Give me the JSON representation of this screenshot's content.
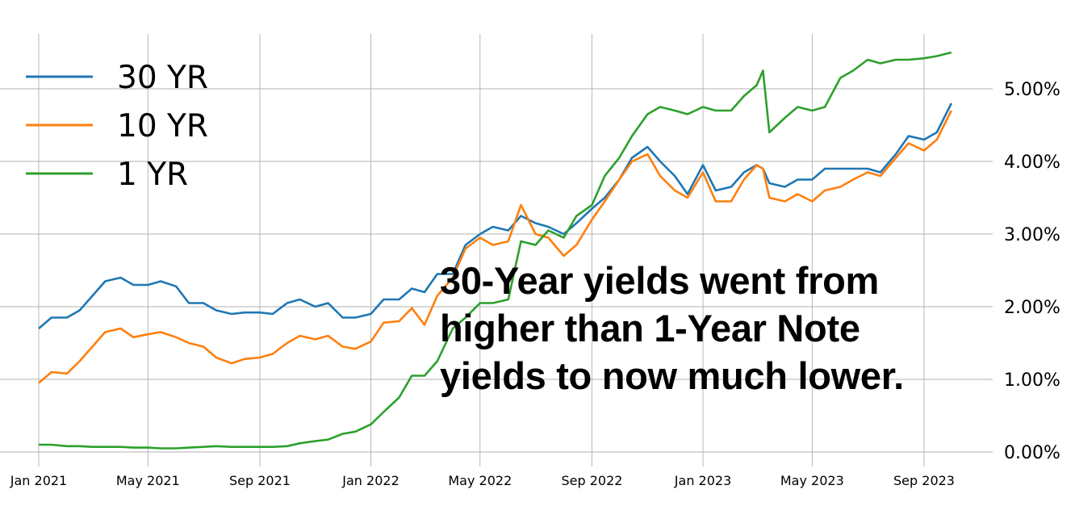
{
  "chart_data": {
    "type": "line",
    "title": "",
    "xlabel": "",
    "ylabel": "",
    "ylim": [
      -0.2,
      5.8
    ],
    "y_axis_side": "right",
    "y_ticks": [
      0,
      1,
      2,
      3,
      4,
      5
    ],
    "y_tick_labels": [
      "0.00%",
      "1.00%",
      "2.00%",
      "3.00%",
      "4.00%",
      "5.00%"
    ],
    "x_ticks": [
      "2021-01-01",
      "2021-05-01",
      "2021-09-01",
      "2022-01-01",
      "2022-05-01",
      "2022-09-01",
      "2023-01-01",
      "2023-05-01",
      "2023-09-01"
    ],
    "x_tick_labels": [
      "Jan 2021",
      "May 2021",
      "Sep 2021",
      "Jan 2022",
      "May 2022",
      "Sep 2022",
      "Jan 2023",
      "May 2023",
      "Sep 2023"
    ],
    "grid": true,
    "legend_position": "top-left",
    "annotation": [
      "30-Year yields went from",
      "higher than 1-Year Note",
      "yields to now much lower."
    ],
    "x": [
      "2021-01-01",
      "2021-01-15",
      "2021-02-01",
      "2021-02-15",
      "2021-03-01",
      "2021-03-15",
      "2021-04-01",
      "2021-04-15",
      "2021-05-01",
      "2021-05-15",
      "2021-06-01",
      "2021-06-15",
      "2021-07-01",
      "2021-07-15",
      "2021-08-01",
      "2021-08-15",
      "2021-09-01",
      "2021-09-15",
      "2021-10-01",
      "2021-10-15",
      "2021-11-01",
      "2021-11-15",
      "2021-12-01",
      "2021-12-15",
      "2022-01-01",
      "2022-01-15",
      "2022-02-01",
      "2022-02-15",
      "2022-03-01",
      "2022-03-15",
      "2022-04-01",
      "2022-04-15",
      "2022-05-01",
      "2022-05-15",
      "2022-06-01",
      "2022-06-15",
      "2022-07-01",
      "2022-07-15",
      "2022-08-01",
      "2022-08-15",
      "2022-09-01",
      "2022-09-15",
      "2022-10-01",
      "2022-10-15",
      "2022-11-01",
      "2022-11-15",
      "2022-12-01",
      "2022-12-15",
      "2023-01-01",
      "2023-01-15",
      "2023-02-01",
      "2023-02-15",
      "2023-03-01",
      "2023-03-08",
      "2023-03-15",
      "2023-04-01",
      "2023-04-15",
      "2023-05-01",
      "2023-05-15",
      "2023-06-01",
      "2023-06-15",
      "2023-07-01",
      "2023-07-15",
      "2023-08-01",
      "2023-08-15",
      "2023-09-01",
      "2023-09-15",
      "2023-10-01"
    ],
    "series": [
      {
        "name": "30 YR",
        "color": "#1f77b4",
        "values": [
          1.7,
          1.85,
          1.85,
          1.95,
          2.15,
          2.35,
          2.4,
          2.3,
          2.3,
          2.35,
          2.28,
          2.05,
          2.05,
          1.95,
          1.9,
          1.92,
          1.92,
          1.9,
          2.05,
          2.1,
          2.0,
          2.05,
          1.85,
          1.85,
          1.9,
          2.1,
          2.1,
          2.25,
          2.2,
          2.45,
          2.45,
          2.85,
          3.0,
          3.1,
          3.05,
          3.25,
          3.15,
          3.1,
          3.0,
          3.15,
          3.35,
          3.5,
          3.75,
          4.05,
          4.2,
          4.0,
          3.8,
          3.55,
          3.95,
          3.6,
          3.65,
          3.85,
          3.95,
          3.9,
          3.7,
          3.65,
          3.75,
          3.75,
          3.9,
          3.9,
          3.9,
          3.9,
          3.85,
          4.1,
          4.35,
          4.3,
          4.4,
          4.8
        ]
      },
      {
        "name": "10 YR",
        "color": "#ff7f0e",
        "values": [
          0.95,
          1.1,
          1.08,
          1.25,
          1.45,
          1.65,
          1.7,
          1.58,
          1.62,
          1.65,
          1.58,
          1.5,
          1.45,
          1.3,
          1.22,
          1.28,
          1.3,
          1.35,
          1.5,
          1.6,
          1.55,
          1.6,
          1.45,
          1.42,
          1.52,
          1.78,
          1.8,
          1.98,
          1.75,
          2.15,
          2.4,
          2.8,
          2.95,
          2.85,
          2.9,
          3.4,
          3.0,
          2.95,
          2.7,
          2.85,
          3.2,
          3.45,
          3.75,
          4.0,
          4.1,
          3.8,
          3.6,
          3.5,
          3.85,
          3.45,
          3.45,
          3.75,
          3.95,
          3.9,
          3.5,
          3.45,
          3.55,
          3.45,
          3.6,
          3.65,
          3.75,
          3.85,
          3.8,
          4.05,
          4.25,
          4.15,
          4.3,
          4.7
        ]
      },
      {
        "name": "1 YR",
        "color": "#2ca02c",
        "values": [
          0.1,
          0.1,
          0.08,
          0.08,
          0.07,
          0.07,
          0.07,
          0.06,
          0.06,
          0.05,
          0.05,
          0.06,
          0.07,
          0.08,
          0.07,
          0.07,
          0.07,
          0.07,
          0.08,
          0.12,
          0.15,
          0.17,
          0.25,
          0.28,
          0.38,
          0.55,
          0.75,
          1.05,
          1.05,
          1.25,
          1.7,
          1.85,
          2.05,
          2.05,
          2.1,
          2.9,
          2.85,
          3.05,
          2.95,
          3.25,
          3.4,
          3.8,
          4.05,
          4.35,
          4.65,
          4.75,
          4.7,
          4.65,
          4.75,
          4.7,
          4.7,
          4.9,
          5.05,
          5.25,
          4.4,
          4.6,
          4.75,
          4.7,
          4.75,
          5.15,
          5.25,
          5.4,
          5.35,
          5.4,
          5.4,
          5.42,
          5.45,
          5.5
        ]
      }
    ]
  }
}
